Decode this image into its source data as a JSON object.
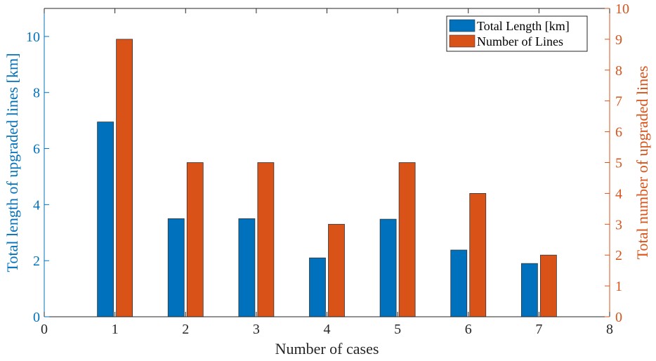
{
  "chart_data": {
    "type": "bar",
    "x": [
      1,
      2,
      3,
      4,
      5,
      6,
      7
    ],
    "xlim": [
      0,
      8
    ],
    "xticks": [
      0,
      1,
      2,
      3,
      4,
      5,
      6,
      7,
      8
    ],
    "xlabel": "Number of cases",
    "y_left": {
      "label": "Total length of upgraded lines [km]",
      "ylim": [
        0,
        11
      ],
      "ticks": [
        0,
        2,
        4,
        6,
        8,
        10
      ],
      "color": "#0072BD"
    },
    "y_right": {
      "label": "Total number of upgraded lines",
      "ylim": [
        0,
        10
      ],
      "ticks": [
        0,
        1,
        2,
        3,
        4,
        5,
        6,
        7,
        8,
        9,
        10
      ],
      "color": "#D95319"
    },
    "series": [
      {
        "name": "Total Length [km]",
        "axis": "left",
        "color": "#0072BD",
        "values": [
          6.95,
          3.5,
          3.5,
          2.1,
          3.48,
          2.38,
          1.9
        ]
      },
      {
        "name": "Number of Lines",
        "axis": "right",
        "color": "#D95319",
        "values": [
          9,
          5,
          5,
          3,
          5,
          4,
          2
        ]
      }
    ],
    "legend_position": "top-right",
    "grid": false
  }
}
